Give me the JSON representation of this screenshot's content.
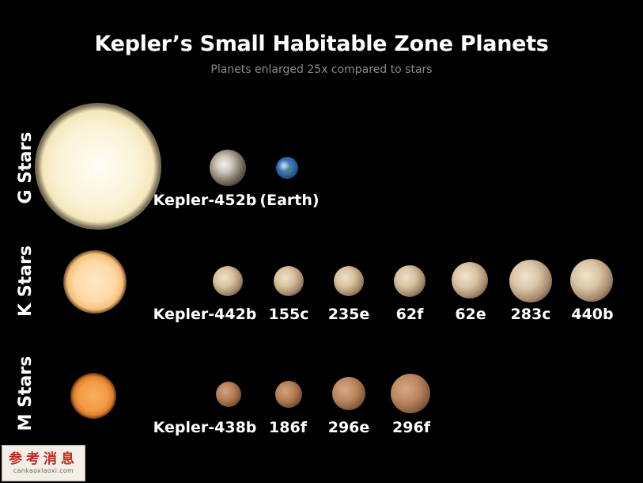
{
  "title": "Kepler’s Small Habitable Zone Planets",
  "subtitle": "Planets enlarged 25x compared to stars",
  "rows": [
    {
      "label": "G Stars",
      "planets": [
        {
          "label": "Kepler-452b"
        },
        {
          "label": "(Earth)"
        }
      ]
    },
    {
      "label": "K Stars",
      "planets": [
        {
          "label": "Kepler-442b"
        },
        {
          "label": "155c"
        },
        {
          "label": "235e"
        },
        {
          "label": "62f"
        },
        {
          "label": "62e"
        },
        {
          "label": "283c"
        },
        {
          "label": "440b"
        }
      ]
    },
    {
      "label": "M Stars",
      "planets": [
        {
          "label": "Kepler-438b"
        },
        {
          "label": "186f"
        },
        {
          "label": "296e"
        },
        {
          "label": "296f"
        }
      ]
    }
  ],
  "watermark": {
    "text": "参考消息",
    "url": "cankaoxiaoxi.com"
  },
  "colors": {
    "background": "#000000",
    "subtitle": "#8a8a8a"
  }
}
